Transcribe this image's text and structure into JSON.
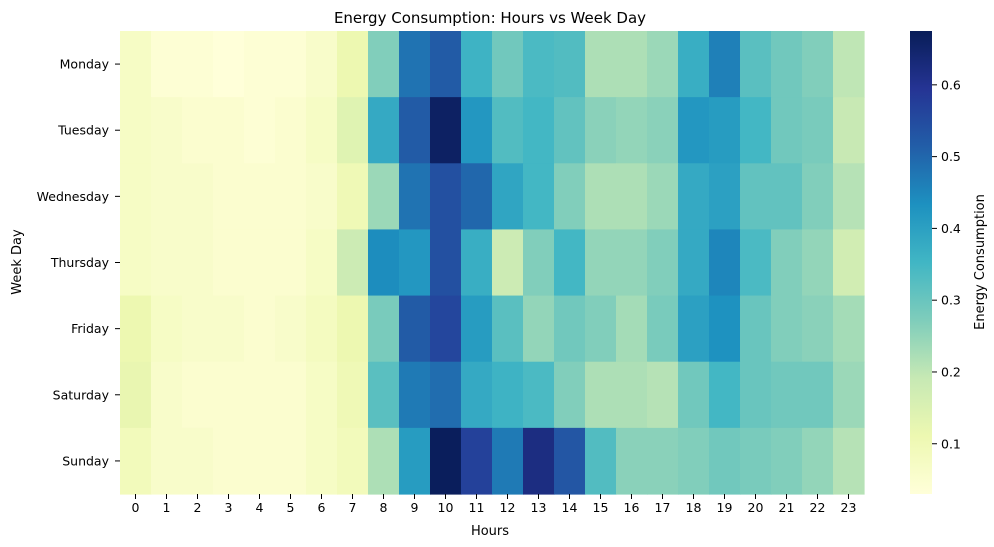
{
  "chart_data": {
    "type": "heatmap",
    "title": "Energy Consumption: Hours vs Week Day",
    "xlabel": "Hours",
    "ylabel": "Week Day",
    "colorbar_label": "Energy Consumption",
    "colormap": "YlGnBu",
    "vmin": 0.03,
    "vmax": 0.675,
    "colorbar_ticks": [
      0.1,
      0.2,
      0.3,
      0.4,
      0.5,
      0.6
    ],
    "colorbar_tick_labels": [
      "0.1",
      "0.2",
      "0.3",
      "0.4",
      "0.5",
      "0.6"
    ],
    "x_labels": [
      "0",
      "1",
      "2",
      "3",
      "4",
      "5",
      "6",
      "7",
      "8",
      "9",
      "10",
      "11",
      "12",
      "13",
      "14",
      "15",
      "16",
      "17",
      "18",
      "19",
      "20",
      "21",
      "22",
      "23"
    ],
    "y_labels": [
      "Monday",
      "Tuesday",
      "Wednesday",
      "Thursday",
      "Friday",
      "Saturday",
      "Sunday"
    ],
    "values": [
      [
        0.07,
        0.04,
        0.04,
        0.03,
        0.04,
        0.04,
        0.06,
        0.11,
        0.27,
        0.48,
        0.52,
        0.36,
        0.29,
        0.34,
        0.33,
        0.22,
        0.22,
        0.24,
        0.37,
        0.46,
        0.32,
        0.29,
        0.27,
        0.2
      ],
      [
        0.07,
        0.06,
        0.05,
        0.05,
        0.04,
        0.05,
        0.07,
        0.14,
        0.38,
        0.52,
        0.66,
        0.42,
        0.33,
        0.35,
        0.31,
        0.26,
        0.25,
        0.26,
        0.42,
        0.41,
        0.35,
        0.29,
        0.28,
        0.19
      ],
      [
        0.07,
        0.06,
        0.06,
        0.05,
        0.05,
        0.05,
        0.06,
        0.1,
        0.24,
        0.48,
        0.54,
        0.5,
        0.39,
        0.35,
        0.27,
        0.22,
        0.22,
        0.24,
        0.38,
        0.4,
        0.31,
        0.31,
        0.27,
        0.21
      ],
      [
        0.07,
        0.06,
        0.06,
        0.05,
        0.05,
        0.05,
        0.07,
        0.18,
        0.44,
        0.42,
        0.54,
        0.37,
        0.18,
        0.27,
        0.35,
        0.25,
        0.25,
        0.27,
        0.38,
        0.45,
        0.34,
        0.27,
        0.25,
        0.17
      ],
      [
        0.11,
        0.07,
        0.06,
        0.06,
        0.05,
        0.06,
        0.08,
        0.11,
        0.28,
        0.52,
        0.56,
        0.41,
        0.32,
        0.25,
        0.29,
        0.27,
        0.23,
        0.28,
        0.4,
        0.43,
        0.3,
        0.27,
        0.26,
        0.23
      ],
      [
        0.12,
        0.06,
        0.05,
        0.05,
        0.05,
        0.05,
        0.07,
        0.1,
        0.32,
        0.47,
        0.49,
        0.38,
        0.36,
        0.34,
        0.27,
        0.22,
        0.22,
        0.21,
        0.29,
        0.35,
        0.3,
        0.29,
        0.29,
        0.24
      ],
      [
        0.09,
        0.06,
        0.06,
        0.05,
        0.05,
        0.05,
        0.07,
        0.09,
        0.22,
        0.41,
        0.67,
        0.57,
        0.47,
        0.62,
        0.53,
        0.33,
        0.26,
        0.26,
        0.27,
        0.29,
        0.28,
        0.27,
        0.25,
        0.21
      ]
    ]
  }
}
